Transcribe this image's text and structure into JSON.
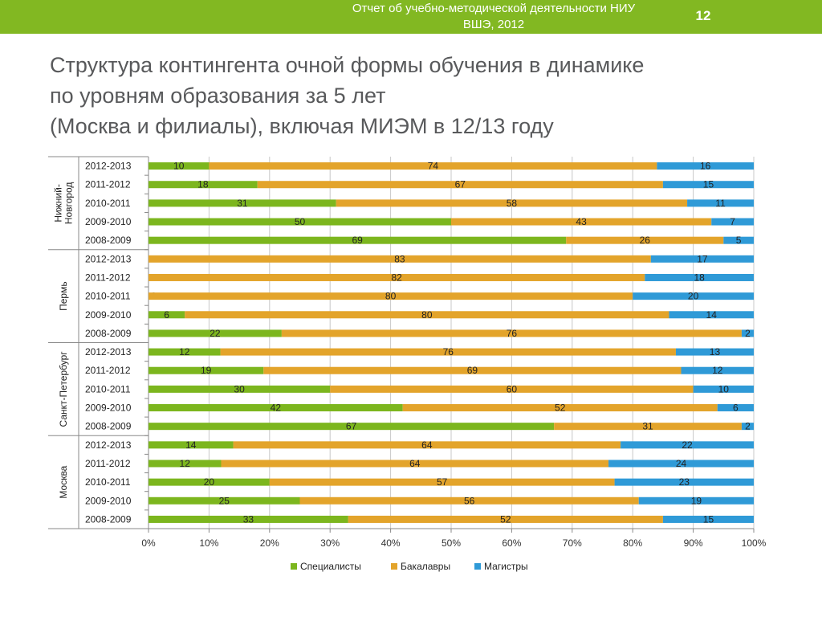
{
  "header": {
    "report_line1": "Отчет об учебно-методической деятельности НИУ",
    "report_line2": "ВШЭ, 2012",
    "page_number": "12"
  },
  "title": {
    "line1": "Структура контингента очной формы обучения в динамике",
    "line2": "по уровням образования за 5 лет",
    "line3": "(Москва и филиалы), включая МИЭМ в 12/13 году"
  },
  "colors": {
    "accent": "#82b822",
    "specialists": "#7cb61e",
    "bachelors": "#e3a42b",
    "masters": "#2f9ad7"
  },
  "chart_data": {
    "type": "bar",
    "orientation": "horizontal",
    "stacked": "percent",
    "groups": [
      {
        "name": "Нижний-Новгород",
        "categories": [
          "2012-2013",
          "2011-2012",
          "2010-2011",
          "2009-2010",
          "2008-2009"
        ]
      },
      {
        "name": "Пермь",
        "categories": [
          "2012-2013",
          "2011-2012",
          "2010-2011",
          "2009-2010",
          "2008-2009"
        ]
      },
      {
        "name": "Санкт-Петербург",
        "categories": [
          "2012-2013",
          "2011-2012",
          "2010-2011",
          "2009-2010",
          "2008-2009"
        ]
      },
      {
        "name": "Москва",
        "categories": [
          "2012-2013",
          "2011-2012",
          "2010-2011",
          "2009-2010",
          "2008-2009"
        ]
      }
    ],
    "series": [
      {
        "name": "Специалисты",
        "values": [
          [
            10,
            18,
            31,
            50,
            69
          ],
          [
            0,
            0,
            0,
            6,
            22
          ],
          [
            12,
            19,
            30,
            42,
            67
          ],
          [
            14,
            12,
            20,
            25,
            33
          ]
        ]
      },
      {
        "name": "Бакалавры",
        "values": [
          [
            74,
            67,
            58,
            43,
            26
          ],
          [
            83,
            82,
            80,
            80,
            76
          ],
          [
            76,
            69,
            60,
            52,
            31
          ],
          [
            64,
            64,
            57,
            56,
            52
          ]
        ]
      },
      {
        "name": "Магистры",
        "values": [
          [
            16,
            15,
            11,
            7,
            5
          ],
          [
            17,
            18,
            20,
            14,
            2
          ],
          [
            13,
            12,
            10,
            6,
            2
          ],
          [
            22,
            24,
            23,
            19,
            15
          ]
        ]
      }
    ],
    "xlim": [
      0,
      100
    ],
    "xticks": [
      "0%",
      "10%",
      "20%",
      "30%",
      "40%",
      "50%",
      "60%",
      "70%",
      "80%",
      "90%",
      "100%"
    ],
    "grid": true,
    "legend": "bottom"
  }
}
